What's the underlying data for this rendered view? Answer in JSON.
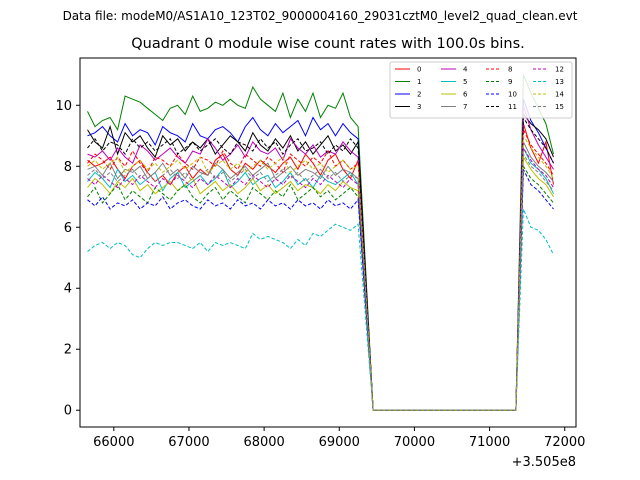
{
  "suptitle": "Data file: modeM0/AS1A10_123T02_9000004160_29031cztM0_level2_quad_clean.evt",
  "chart_data": {
    "type": "line",
    "title": "Quadrant 0 module wise count rates with 100.0s bins.",
    "xlabel": "",
    "ylabel": "",
    "x_offset_label": "+3.505e8",
    "xlim": [
      65550,
      72150
    ],
    "ylim": [
      -0.55,
      11.55
    ],
    "xticks": [
      66000,
      67000,
      68000,
      69000,
      70000,
      71000,
      72000
    ],
    "xtick_labels": [
      "66000",
      "67000",
      "68000",
      "69000",
      "70000",
      "71000",
      "72000"
    ],
    "yticks": [
      0,
      2,
      4,
      6,
      8,
      10
    ],
    "ytick_labels": [
      "0",
      "2",
      "4",
      "6",
      "8",
      "10"
    ],
    "legend_position": "upper-right",
    "segments": {
      "active_1": {
        "start": 65650,
        "step": 100,
        "count": 37
      },
      "gap": {
        "start": 69450,
        "end": 71350
      },
      "active_2": {
        "start": 71450,
        "step": 100,
        "count": 5
      }
    },
    "series": [
      {
        "name": "0",
        "color": "#ff0000",
        "dash": false,
        "values": [
          8.2,
          8.0,
          8.1,
          8.3,
          7.9,
          7.6,
          8.0,
          8.2,
          7.8,
          7.5,
          7.7,
          7.4,
          7.8,
          8.0,
          7.6,
          7.9,
          7.7,
          8.2,
          8.4,
          7.9,
          7.7,
          8.1,
          7.9,
          8.2,
          8.0,
          7.8,
          8.1,
          8.3,
          7.9,
          8.4,
          8.1,
          7.7,
          8.2,
          8.4,
          7.9,
          7.6,
          8.2
        ],
        "values2": [
          9.4,
          8.6,
          8.1,
          8.8,
          7.4
        ]
      },
      {
        "name": "1",
        "color": "#008000",
        "dash": false,
        "values": [
          9.8,
          9.3,
          9.5,
          9.6,
          9.2,
          10.3,
          10.2,
          10.1,
          9.9,
          9.7,
          9.5,
          9.9,
          10.0,
          9.7,
          10.3,
          9.8,
          9.9,
          10.1,
          10.0,
          10.2,
          10.0,
          9.9,
          10.6,
          10.2,
          10.0,
          9.8,
          10.4,
          9.6,
          10.2,
          9.8,
          10.4,
          9.6,
          10.0,
          9.9,
          10.4,
          9.6,
          9.3
        ],
        "values2": [
          11.0,
          10.4,
          9.9,
          9.4,
          8.4
        ]
      },
      {
        "name": "2",
        "color": "#0000ff",
        "dash": false,
        "values": [
          9.0,
          9.1,
          9.3,
          9.0,
          8.8,
          9.4,
          9.0,
          9.2,
          9.1,
          8.7,
          9.3,
          9.1,
          9.0,
          8.8,
          9.4,
          9.0,
          8.9,
          9.2,
          9.3,
          9.1,
          8.8,
          9.3,
          9.6,
          9.2,
          9.0,
          9.4,
          9.1,
          9.3,
          9.5,
          9.0,
          9.6,
          9.2,
          9.4,
          9.0,
          9.4,
          9.1,
          8.9
        ],
        "values2": [
          10.2,
          9.5,
          9.1,
          8.6,
          8.1
        ]
      },
      {
        "name": "3",
        "color": "#000000",
        "dash": false,
        "values": [
          9.2,
          8.8,
          8.6,
          9.3,
          8.4,
          9.1,
          8.8,
          9.0,
          8.6,
          8.3,
          9.0,
          8.7,
          8.9,
          8.5,
          8.8,
          8.6,
          8.9,
          8.4,
          8.7,
          9.0,
          8.8,
          8.5,
          9.1,
          8.7,
          8.5,
          8.9,
          8.6,
          9.0,
          8.5,
          8.8,
          8.4,
          8.7,
          9.0,
          8.5,
          8.7,
          8.4,
          8.8
        ],
        "values2": [
          9.7,
          9.4,
          9.2,
          8.9,
          8.3
        ]
      },
      {
        "name": "4",
        "color": "#bf00bf",
        "dash": false,
        "values": [
          8.4,
          8.3,
          8.5,
          8.2,
          8.6,
          8.3,
          8.1,
          8.7,
          8.5,
          8.2,
          8.4,
          8.6,
          8.3,
          8.1,
          8.5,
          8.4,
          8.9,
          8.6,
          8.2,
          8.4,
          8.7,
          8.3,
          8.8,
          8.5,
          8.4,
          8.6,
          8.2,
          8.9,
          8.6,
          8.4,
          8.7,
          8.3,
          8.5,
          8.4,
          8.8,
          8.5,
          8.3
        ],
        "values2": [
          10.0,
          9.2,
          8.7,
          8.3,
          7.9
        ]
      },
      {
        "name": "5",
        "color": "#00bfbf",
        "dash": false,
        "values": [
          7.5,
          7.8,
          7.6,
          7.3,
          7.9,
          7.5,
          7.7,
          7.4,
          7.6,
          7.8,
          7.2,
          7.6,
          7.8,
          7.3,
          7.5,
          7.7,
          7.4,
          7.6,
          7.9,
          7.3,
          7.5,
          7.8,
          7.4,
          7.6,
          7.7,
          7.3,
          7.5,
          7.8,
          7.4,
          7.6,
          7.3,
          7.7,
          7.5,
          7.4,
          7.6,
          7.8,
          7.4
        ],
        "values2": [
          8.6,
          8.1,
          7.9,
          7.6,
          7.1
        ]
      },
      {
        "name": "6",
        "color": "#bfbf00",
        "dash": false,
        "values": [
          7.3,
          7.6,
          7.4,
          7.1,
          7.5,
          7.3,
          7.6,
          7.2,
          7.4,
          7.1,
          7.3,
          7.5,
          7.2,
          7.4,
          7.6,
          7.1,
          7.3,
          7.5,
          7.2,
          7.4,
          7.1,
          7.3,
          7.6,
          7.2,
          7.4,
          7.1,
          7.3,
          7.5,
          7.2,
          7.4,
          7.3,
          7.1,
          7.4,
          7.2,
          7.5,
          7.3,
          7.2
        ],
        "values2": [
          8.3,
          7.9,
          7.6,
          7.4,
          7.0
        ]
      },
      {
        "name": "7",
        "color": "#808080",
        "dash": false,
        "values": [
          7.9,
          8.0,
          7.7,
          8.1,
          7.6,
          7.9,
          7.8,
          8.0,
          7.6,
          7.8,
          8.1,
          7.7,
          7.9,
          7.6,
          8.0,
          7.8,
          7.7,
          8.1,
          7.9,
          7.6,
          7.8,
          8.0,
          7.7,
          7.9,
          8.1,
          7.6,
          7.8,
          8.0,
          7.7,
          7.9,
          7.8,
          7.6,
          8.0,
          7.7,
          7.9,
          7.8,
          7.6
        ],
        "values2": [
          8.8,
          8.3,
          8.0,
          7.8,
          7.5
        ]
      },
      {
        "name": "8",
        "color": "#ff0000",
        "dash": true,
        "values": [
          8.1,
          8.4,
          8.2,
          7.9,
          8.3,
          8.0,
          8.5,
          8.1,
          7.8,
          8.3,
          8.2,
          8.0,
          8.4,
          8.1,
          7.9,
          8.3,
          8.2,
          8.0,
          8.5,
          8.1,
          7.9,
          8.4,
          8.2,
          8.0,
          8.3,
          8.1,
          7.8,
          8.4,
          8.2,
          8.0,
          8.3,
          8.1,
          8.5,
          8.0,
          8.2,
          7.9,
          8.1
        ],
        "values2": [
          9.2,
          8.7,
          8.4,
          8.1,
          7.7
        ]
      },
      {
        "name": "9",
        "color": "#008000",
        "dash": true,
        "values": [
          7.0,
          7.3,
          6.8,
          7.1,
          7.4,
          6.9,
          7.2,
          7.0,
          6.8,
          7.3,
          7.1,
          6.9,
          7.2,
          7.4,
          7.0,
          6.8,
          7.1,
          7.3,
          6.9,
          7.2,
          7.0,
          6.8,
          7.3,
          7.1,
          6.9,
          7.2,
          7.0,
          7.4,
          6.9,
          7.1,
          7.3,
          7.0,
          7.2,
          6.9,
          7.1,
          7.3,
          7.0
        ],
        "values2": [
          8.0,
          7.6,
          7.4,
          7.1,
          6.8
        ]
      },
      {
        "name": "10",
        "color": "#0000ff",
        "dash": true,
        "values": [
          6.9,
          6.7,
          7.0,
          6.6,
          6.8,
          6.7,
          6.9,
          6.6,
          6.8,
          6.7,
          7.0,
          6.6,
          6.8,
          6.9,
          6.7,
          6.6,
          6.9,
          6.7,
          6.8,
          6.6,
          6.9,
          6.7,
          6.8,
          6.6,
          6.9,
          6.7,
          6.8,
          6.6,
          6.9,
          6.7,
          6.8,
          6.6,
          6.9,
          6.7,
          6.8,
          6.6,
          6.9
        ],
        "values2": [
          7.9,
          7.4,
          7.2,
          6.9,
          6.6
        ]
      },
      {
        "name": "11",
        "color": "#000000",
        "dash": true,
        "values": [
          8.6,
          8.9,
          8.5,
          8.8,
          8.7,
          8.4,
          8.9,
          8.6,
          8.8,
          8.5,
          8.7,
          8.9,
          8.4,
          8.6,
          8.8,
          8.5,
          8.7,
          8.9,
          8.6,
          8.4,
          8.8,
          8.7,
          8.5,
          8.9,
          8.6,
          8.8,
          8.4,
          8.7,
          8.9,
          8.5,
          8.6,
          8.8,
          8.4,
          8.7,
          8.5,
          8.9,
          8.6
        ],
        "values2": [
          9.6,
          9.2,
          8.9,
          8.6,
          8.1
        ]
      },
      {
        "name": "12",
        "color": "#bf00bf",
        "dash": true,
        "values": [
          7.6,
          7.4,
          7.7,
          7.5,
          7.3,
          7.6,
          7.4,
          7.7,
          7.5,
          7.3,
          7.6,
          7.4,
          7.7,
          7.5,
          7.3,
          7.6,
          7.4,
          7.7,
          7.5,
          7.3,
          7.6,
          7.4,
          7.7,
          7.5,
          7.3,
          7.6,
          7.4,
          7.7,
          7.5,
          7.3,
          7.6,
          7.4,
          7.7,
          7.5,
          7.3,
          7.6,
          7.4
        ],
        "values2": [
          8.6,
          8.2,
          7.9,
          7.7,
          7.3
        ]
      },
      {
        "name": "13",
        "color": "#00bfbf",
        "dash": true,
        "values": [
          5.2,
          5.4,
          5.5,
          5.3,
          5.5,
          5.4,
          5.1,
          5.0,
          5.3,
          5.5,
          5.4,
          5.5,
          5.5,
          5.4,
          5.3,
          5.5,
          5.2,
          5.5,
          5.4,
          5.5,
          5.4,
          5.3,
          5.8,
          5.6,
          5.7,
          5.6,
          5.5,
          5.3,
          5.6,
          5.4,
          5.8,
          5.7,
          5.9,
          6.1,
          6.0,
          5.9,
          6.1
        ],
        "values2": [
          6.6,
          6.0,
          5.9,
          5.6,
          5.1
        ]
      },
      {
        "name": "14",
        "color": "#bfbf00",
        "dash": true,
        "values": [
          8.0,
          8.2,
          7.9,
          8.1,
          8.3,
          7.8,
          8.0,
          8.2,
          7.9,
          8.1,
          7.8,
          8.0,
          8.2,
          7.9,
          8.1,
          8.3,
          7.8,
          8.0,
          8.2,
          7.9,
          8.1,
          7.8,
          8.0,
          8.2,
          7.9,
          8.1,
          8.3,
          7.8,
          8.0,
          8.2,
          7.9,
          8.1,
          7.8,
          8.0,
          8.2,
          7.9,
          8.0
        ],
        "values2": [
          9.0,
          8.6,
          8.3,
          8.0,
          7.6
        ]
      },
      {
        "name": "15",
        "color": "#808080",
        "dash": true,
        "values": [
          7.7,
          7.9,
          7.6,
          7.8,
          7.5,
          7.7,
          7.9,
          7.6,
          7.8,
          7.5,
          7.7,
          7.9,
          7.6,
          7.8,
          7.5,
          7.7,
          7.9,
          7.6,
          7.8,
          7.5,
          7.7,
          7.9,
          7.6,
          7.8,
          7.5,
          7.7,
          7.9,
          7.6,
          7.8,
          7.5,
          7.7,
          7.9,
          7.6,
          7.8,
          7.5,
          7.7,
          7.6
        ],
        "values2": [
          8.4,
          8.0,
          7.8,
          7.5,
          7.2
        ]
      }
    ]
  }
}
